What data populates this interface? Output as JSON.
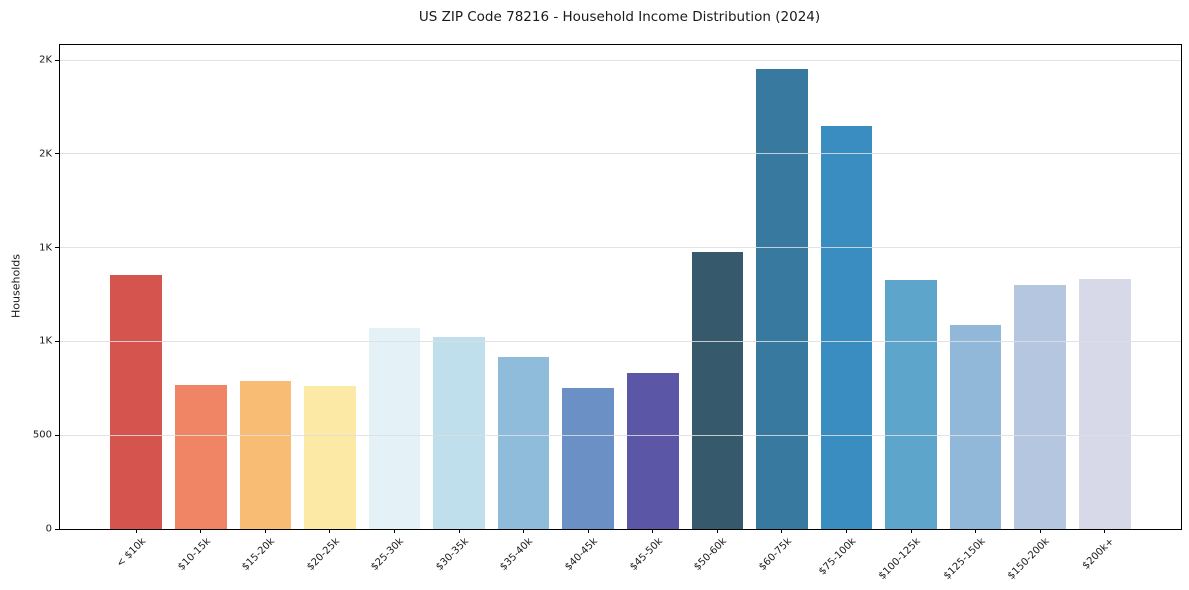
{
  "chart_data": {
    "type": "bar",
    "title": "US ZIP Code 78216 - Household Income Distribution (2024)",
    "xlabel": "",
    "ylabel": "Households",
    "ylim": [
      0,
      2580
    ],
    "grid": true,
    "legend": "none",
    "categories": [
      "< $10k",
      "$10-15k",
      "$15-20k",
      "$20-25k",
      "$25-30k",
      "$30-35k",
      "$35-40k",
      "$40-45k",
      "$45-50k",
      "$50-60k",
      "$60-75k",
      "$75-100k",
      "$100-125k",
      "$125-150k",
      "$150-200k",
      "$200k+"
    ],
    "values": [
      1355,
      770,
      790,
      765,
      1070,
      1025,
      915,
      750,
      830,
      1475,
      2450,
      2150,
      1325,
      1090,
      1300,
      1335
    ],
    "bar_colors": [
      "#d5544e",
      "#f08566",
      "#f9bc74",
      "#fce9a6",
      "#e4f2f7",
      "#bfdfec",
      "#8fbcdb",
      "#6a90c5",
      "#5b57a6",
      "#36596c",
      "#37799f",
      "#3a8dc1",
      "#5ea5cc",
      "#91b8d9",
      "#b4c6e0",
      "#d8d9e8"
    ],
    "y_ticks": [
      {
        "value": 0,
        "label": "0"
      },
      {
        "value": 500,
        "label": "500"
      },
      {
        "value": 1000,
        "label": "1K"
      },
      {
        "value": 1500,
        "label": "1K"
      },
      {
        "value": 2000,
        "label": "2K"
      },
      {
        "value": 2500,
        "label": "2K"
      }
    ],
    "grid_color": "#e4e4e6",
    "spine_color": "#000000",
    "text_color": "#1a1a1a",
    "background_color": "#ffffff"
  }
}
